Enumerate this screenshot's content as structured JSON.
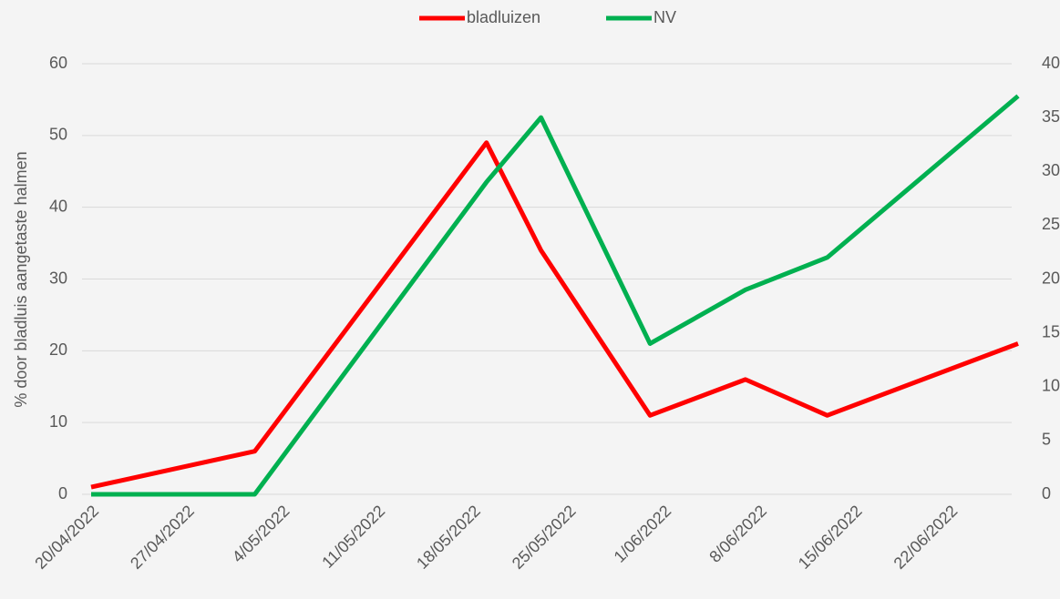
{
  "chart_data": {
    "type": "line",
    "y_label": "% door bladluis aangetaste halmen",
    "x": [
      "2022-04-20",
      "2022-05-02",
      "2022-05-19",
      "2022-05-23",
      "2022-05-31",
      "2022-06-07",
      "2022-06-13",
      "2022-06-27"
    ],
    "series": [
      {
        "name": "bladluizen",
        "color": "#ff0000",
        "values": [
          1,
          6,
          49,
          34,
          11,
          16,
          11,
          21
        ]
      },
      {
        "name": "NV",
        "color": "#00b050",
        "axis": "y2",
        "values": [
          0,
          0,
          29,
          35,
          14,
          19,
          22,
          37
        ]
      }
    ],
    "xlim": [
      "2022-04-20",
      "2022-06-27"
    ],
    "xticks": [
      {
        "value": "2022-04-20",
        "label": "20/04/2022"
      },
      {
        "value": "2022-04-27",
        "label": "27/04/2022"
      },
      {
        "value": "2022-05-04",
        "label": "4/05/2022"
      },
      {
        "value": "2022-05-11",
        "label": "11/05/2022"
      },
      {
        "value": "2022-05-18",
        "label": "18/05/2022"
      },
      {
        "value": "2022-05-25",
        "label": "25/05/2022"
      },
      {
        "value": "2022-06-01",
        "label": "1/06/2022"
      },
      {
        "value": "2022-06-08",
        "label": "8/06/2022"
      },
      {
        "value": "2022-06-15",
        "label": "15/06/2022"
      },
      {
        "value": "2022-06-22",
        "label": "22/06/2022"
      }
    ],
    "ylim": [
      0,
      60
    ],
    "yticks": [
      0,
      10,
      20,
      30,
      40,
      50,
      60
    ],
    "y2lim": [
      0,
      40
    ],
    "y2ticks": [
      0,
      5,
      10,
      15,
      20,
      25,
      30,
      35,
      40
    ],
    "grid": true,
    "legend": "top"
  }
}
